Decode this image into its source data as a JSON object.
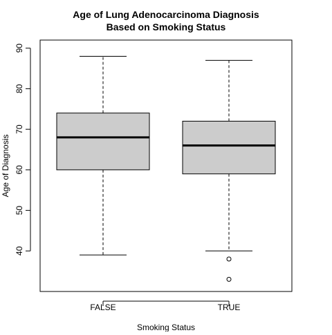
{
  "chart_data": {
    "type": "boxplot",
    "title_lines": [
      "Age of Lung Adenocarcinoma Diagnosis",
      "Based on Smoking Status"
    ],
    "xlabel": "Smoking Status",
    "ylabel": "Age of Diagnosis",
    "ylim": [
      30,
      92
    ],
    "yticks": [
      40,
      50,
      60,
      70,
      80,
      90
    ],
    "categories": [
      "FALSE",
      "TRUE"
    ],
    "boxes": [
      {
        "category": "FALSE",
        "whisker_low": 39,
        "q1": 60,
        "median": 68,
        "q3": 74,
        "whisker_high": 88,
        "outliers": []
      },
      {
        "category": "TRUE",
        "whisker_low": 40,
        "q1": 59,
        "median": 66,
        "q3": 72,
        "whisker_high": 87,
        "outliers": [
          38,
          33
        ]
      }
    ],
    "grid": false,
    "box_fill": "#cccccc"
  }
}
